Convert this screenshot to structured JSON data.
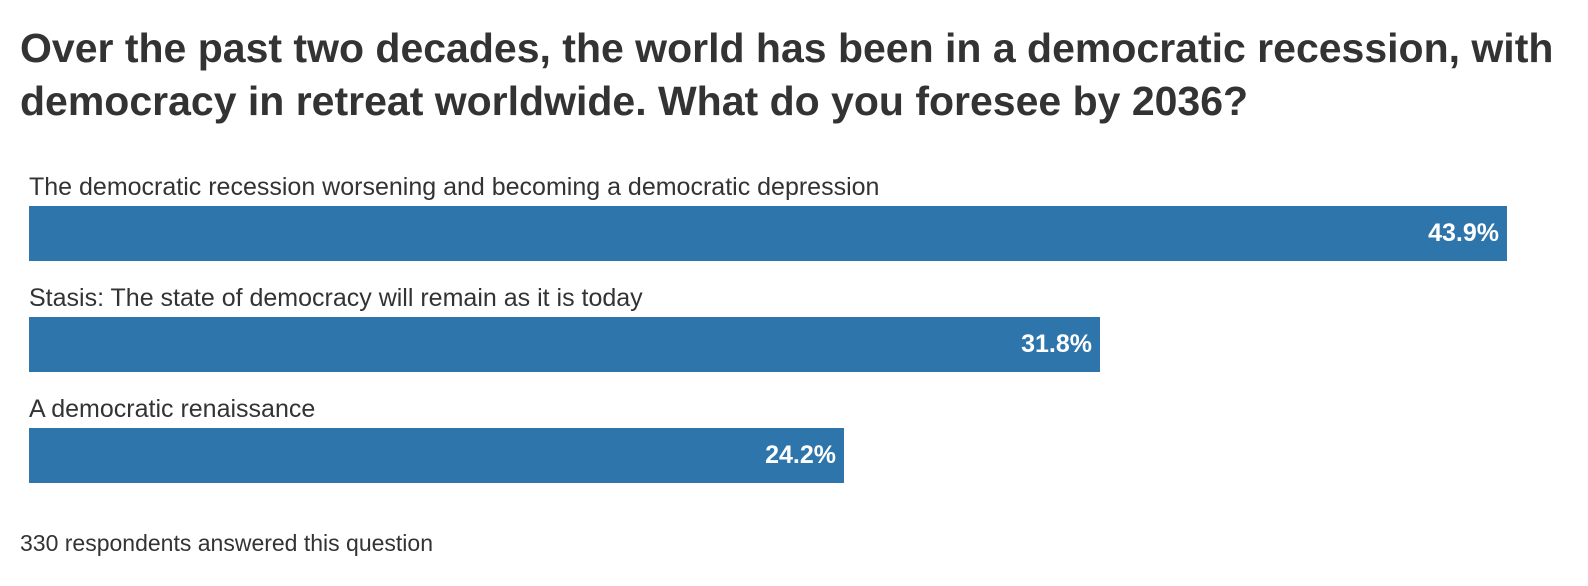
{
  "chart_data": {
    "type": "bar",
    "orientation": "horizontal",
    "title": "Over the past two decades, the world has been in a democratic recession, with democracy in retreat worldwide. What do you foresee by 2036?",
    "categories": [
      "The democratic recession worsening and becoming a democratic depression",
      "Stasis: The state of democracy will remain as it is today",
      "A democratic renaissance"
    ],
    "values": [
      43.9,
      31.8,
      24.2
    ],
    "value_labels": [
      "43.9%",
      "31.8%",
      "24.2%"
    ],
    "unit": "%",
    "bar_color": "#2e75ab",
    "value_label_color": "#ffffff",
    "grid": false,
    "legend": "none",
    "xlabel": "",
    "ylabel": ""
  },
  "footnote": "330 respondents answered this question"
}
